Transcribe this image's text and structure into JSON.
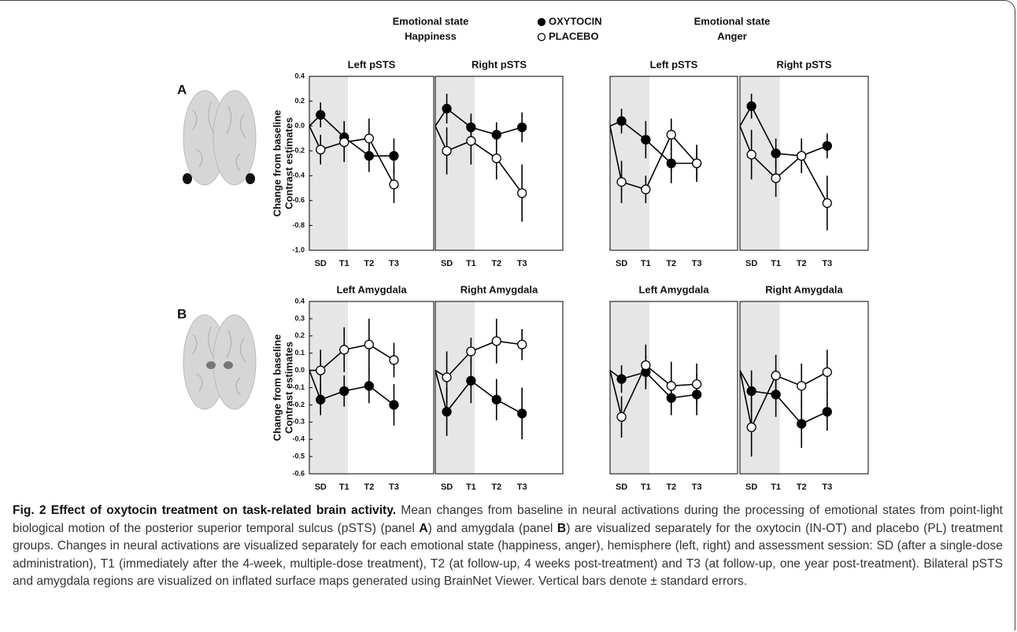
{
  "groups": [
    {
      "line1": "Emotional state",
      "line2": "Happiness"
    },
    {
      "line1": "Emotional state",
      "line2": "Anger"
    }
  ],
  "legend": [
    {
      "name": "OXYTOCIN",
      "fill": "#000000"
    },
    {
      "name": "PLACEBO",
      "fill": "#ffffff"
    }
  ],
  "panels": [
    "A",
    "B"
  ],
  "chart_data": [
    {
      "type": "line",
      "title": "Left pSTS",
      "ylabel": [
        "Change from baseline",
        "Contrast estimates"
      ],
      "categories": [
        null,
        "SD",
        "T1",
        "T2",
        "T3"
      ],
      "ylim": [
        -1.0,
        0.4
      ],
      "yticks": [
        0.4,
        0.2,
        {
          "value": 0,
          "label": "0.0"
        },
        -0.2,
        -0.4,
        -0.6,
        -0.8,
        {
          "value": -1,
          "label": "-1.0"
        }
      ],
      "series": [
        {
          "fill": "#000000",
          "values": [
            0,
            0.09,
            -0.09,
            -0.24,
            -0.24
          ],
          "errors": [
            null,
            0.1,
            0.13,
            0.13,
            0.14
          ]
        },
        {
          "fill": "#ffffff",
          "values": [
            0,
            -0.19,
            -0.13,
            -0.1,
            -0.47
          ],
          "errors": [
            null,
            0.12,
            0.16,
            0.16,
            0.15
          ]
        }
      ]
    },
    {
      "type": "line",
      "title": "Right pSTS",
      "categories": [
        null,
        "SD",
        "T1",
        "T2",
        "T3"
      ],
      "ylim": [
        -1.0,
        0.4
      ],
      "series": [
        {
          "fill": "#000000",
          "values": [
            0,
            0.14,
            -0.01,
            -0.07,
            -0.01
          ],
          "errors": [
            null,
            0.12,
            0.11,
            0.1,
            0.12
          ]
        },
        {
          "fill": "#ffffff",
          "values": [
            0,
            -0.2,
            -0.12,
            -0.26,
            -0.54
          ],
          "errors": [
            null,
            0.19,
            0.19,
            0.17,
            0.23
          ]
        }
      ]
    },
    {
      "type": "line",
      "title": "Left pSTS",
      "categories": [
        null,
        "SD",
        "T1",
        "T2",
        "T3"
      ],
      "ylim": [
        -1.0,
        0.4
      ],
      "series": [
        {
          "fill": "#000000",
          "values": [
            0,
            0.04,
            -0.11,
            -0.3,
            -0.3
          ],
          "errors": [
            null,
            0.1,
            0.15,
            0.16,
            0.13
          ]
        },
        {
          "fill": "#ffffff",
          "values": [
            0,
            -0.45,
            -0.51,
            -0.07,
            -0.3
          ],
          "errors": [
            null,
            0.17,
            0.11,
            0.13,
            0.15
          ]
        }
      ]
    },
    {
      "type": "line",
      "title": "Right pSTS",
      "categories": [
        null,
        "SD",
        "T1",
        "T2",
        "T3"
      ],
      "ylim": [
        -1.0,
        0.4
      ],
      "series": [
        {
          "fill": "#000000",
          "values": [
            0,
            0.16,
            -0.22,
            -0.24,
            -0.16
          ],
          "errors": [
            null,
            0.1,
            0.12,
            0.14,
            0.1
          ]
        },
        {
          "fill": "#ffffff",
          "values": [
            0,
            -0.23,
            -0.42,
            -0.24,
            -0.62
          ],
          "errors": [
            null,
            0.2,
            0.15,
            0.12,
            0.22
          ]
        }
      ]
    },
    {
      "type": "line",
      "title": "Left Amygdala",
      "ylabel": [
        "Change from baseline",
        "Contrast estimates"
      ],
      "categories": [
        null,
        "SD",
        "T1",
        "T2",
        "T3"
      ],
      "ylim": [
        -0.6,
        0.4
      ],
      "yticks": [
        0.4,
        0.3,
        0.2,
        0.1,
        {
          "value": 0,
          "label": "0.0"
        },
        -0.1,
        -0.2,
        -0.3,
        -0.4,
        -0.5,
        -0.6
      ],
      "series": [
        {
          "fill": "#000000",
          "values": [
            0,
            -0.17,
            -0.12,
            -0.09,
            -0.2
          ],
          "errors": [
            null,
            0.09,
            0.09,
            0.1,
            0.12
          ]
        },
        {
          "fill": "#ffffff",
          "values": [
            0,
            0.0,
            0.12,
            0.15,
            0.06
          ],
          "errors": [
            null,
            0.12,
            0.13,
            0.15,
            0.1
          ]
        }
      ]
    },
    {
      "type": "line",
      "title": "Right Amygdala",
      "categories": [
        null,
        "SD",
        "T1",
        "T2",
        "T3"
      ],
      "ylim": [
        -0.6,
        0.4
      ],
      "series": [
        {
          "fill": "#000000",
          "values": [
            0,
            -0.24,
            -0.06,
            -0.17,
            -0.25
          ],
          "errors": [
            null,
            0.14,
            0.13,
            0.12,
            0.15
          ]
        },
        {
          "fill": "#ffffff",
          "values": [
            0,
            -0.04,
            0.11,
            0.17,
            0.15
          ],
          "errors": [
            null,
            0.15,
            0.08,
            0.13,
            0.09
          ]
        }
      ]
    },
    {
      "type": "line",
      "title": "Left Amygdala",
      "categories": [
        null,
        "SD",
        "T1",
        "T2",
        "T3"
      ],
      "ylim": [
        -0.6,
        0.4
      ],
      "series": [
        {
          "fill": "#000000",
          "values": [
            0,
            -0.05,
            -0.01,
            -0.16,
            -0.14
          ],
          "errors": [
            null,
            0.08,
            0.1,
            0.1,
            0.12
          ]
        },
        {
          "fill": "#ffffff",
          "values": [
            0,
            -0.27,
            0.03,
            -0.09,
            -0.08
          ],
          "errors": [
            null,
            0.12,
            0.12,
            0.14,
            0.12
          ]
        }
      ]
    },
    {
      "type": "line",
      "title": "Right Amygdala",
      "categories": [
        null,
        "SD",
        "T1",
        "T2",
        "T3"
      ],
      "ylim": [
        -0.6,
        0.4
      ],
      "series": [
        {
          "fill": "#000000",
          "values": [
            0,
            -0.12,
            -0.14,
            -0.31,
            -0.24
          ],
          "errors": [
            null,
            0.12,
            0.13,
            0.14,
            0.11
          ]
        },
        {
          "fill": "#ffffff",
          "values": [
            0,
            -0.33,
            -0.03,
            -0.09,
            -0.01
          ],
          "errors": [
            null,
            0.17,
            0.12,
            0.13,
            0.13
          ]
        }
      ]
    }
  ],
  "caption": [
    {
      "text": "Fig. 2 Effect of oxytocin treatment on task-related brain activity.",
      "bold": true
    },
    {
      "text": " Mean changes from baseline in neural activations during the processing of emotional states from point-light biological motion of the posterior superior temporal sulcus (pSTS) (panel ",
      "bold": false
    },
    {
      "text": "A",
      "bold": true
    },
    {
      "text": ") and amygdala (panel ",
      "bold": false
    },
    {
      "text": "B",
      "bold": true
    },
    {
      "text": ") are visualized separately for the oxytocin (IN-OT) and placebo (PL) treatment groups. Changes in neural activations are visualized separately for each emotional state (happiness, anger), hemisphere (left, right) and assessment session: SD (after a single-dose administration), T1 (immediately after the 4-week, multiple-dose treatment), T2 (at follow-up, 4 weeks post-treatment) and T3 (at follow-up, one year post-treatment). Bilateral pSTS and amygdala regions are visualized on inflated surface maps generated using BrainNet Viewer. Vertical bars denote ± standard errors.",
      "bold": false
    }
  ]
}
